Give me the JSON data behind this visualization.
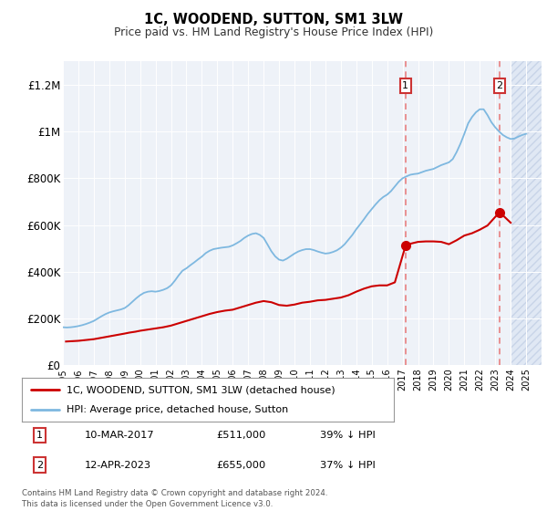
{
  "title": "1C, WOODEND, SUTTON, SM1 3LW",
  "subtitle": "Price paid vs. HM Land Registry's House Price Index (HPI)",
  "ylim": [
    0,
    1300000
  ],
  "yticks": [
    0,
    200000,
    400000,
    600000,
    800000,
    1000000,
    1200000
  ],
  "ytick_labels": [
    "£0",
    "£200K",
    "£400K",
    "£600K",
    "£800K",
    "£1M",
    "£1.2M"
  ],
  "hpi_color": "#7eb8e0",
  "price_color": "#cc0000",
  "dashed_color": "#e88080",
  "marker1_year": 2017.19,
  "marker1_price": 511000,
  "marker2_year": 2023.28,
  "marker2_price": 655000,
  "legend_label_red": "1C, WOODEND, SUTTON, SM1 3LW (detached house)",
  "legend_label_blue": "HPI: Average price, detached house, Sutton",
  "note1_num": "1",
  "note1_date": "10-MAR-2017",
  "note1_price": "£511,000",
  "note1_hpi": "39% ↓ HPI",
  "note2_num": "2",
  "note2_date": "12-APR-2023",
  "note2_price": "£655,000",
  "note2_hpi": "37% ↓ HPI",
  "footer": "Contains HM Land Registry data © Crown copyright and database right 2024.\nThis data is licensed under the Open Government Licence v3.0.",
  "bg_color": "#eef2f8",
  "hatch_bg_color": "#e0e8f4",
  "hpi_data_x": [
    1995.0,
    1995.25,
    1995.5,
    1995.75,
    1996.0,
    1996.25,
    1996.5,
    1996.75,
    1997.0,
    1997.25,
    1997.5,
    1997.75,
    1998.0,
    1998.25,
    1998.5,
    1998.75,
    1999.0,
    1999.25,
    1999.5,
    1999.75,
    2000.0,
    2000.25,
    2000.5,
    2000.75,
    2001.0,
    2001.25,
    2001.5,
    2001.75,
    2002.0,
    2002.25,
    2002.5,
    2002.75,
    2003.0,
    2003.25,
    2003.5,
    2003.75,
    2004.0,
    2004.25,
    2004.5,
    2004.75,
    2005.0,
    2005.25,
    2005.5,
    2005.75,
    2006.0,
    2006.25,
    2006.5,
    2006.75,
    2007.0,
    2007.25,
    2007.5,
    2007.75,
    2008.0,
    2008.25,
    2008.5,
    2008.75,
    2009.0,
    2009.25,
    2009.5,
    2009.75,
    2010.0,
    2010.25,
    2010.5,
    2010.75,
    2011.0,
    2011.25,
    2011.5,
    2011.75,
    2012.0,
    2012.25,
    2012.5,
    2012.75,
    2013.0,
    2013.25,
    2013.5,
    2013.75,
    2014.0,
    2014.25,
    2014.5,
    2014.75,
    2015.0,
    2015.25,
    2015.5,
    2015.75,
    2016.0,
    2016.25,
    2016.5,
    2016.75,
    2017.0,
    2017.25,
    2017.5,
    2017.75,
    2018.0,
    2018.25,
    2018.5,
    2018.75,
    2019.0,
    2019.25,
    2019.5,
    2019.75,
    2020.0,
    2020.25,
    2020.5,
    2020.75,
    2021.0,
    2021.25,
    2021.5,
    2021.75,
    2022.0,
    2022.25,
    2022.5,
    2022.75,
    2023.0,
    2023.25,
    2023.5,
    2023.75,
    2024.0,
    2024.25,
    2024.5,
    2024.75,
    2025.0
  ],
  "hpi_data_y": [
    163000,
    162000,
    163000,
    165000,
    168000,
    172000,
    177000,
    183000,
    190000,
    200000,
    210000,
    219000,
    226000,
    231000,
    235000,
    239000,
    245000,
    257000,
    272000,
    287000,
    300000,
    310000,
    315000,
    317000,
    315000,
    318000,
    323000,
    330000,
    342000,
    362000,
    385000,
    405000,
    415000,
    428000,
    440000,
    453000,
    465000,
    480000,
    490000,
    497000,
    500000,
    503000,
    505000,
    507000,
    513000,
    522000,
    532000,
    545000,
    555000,
    562000,
    565000,
    558000,
    545000,
    517000,
    488000,
    466000,
    452000,
    448000,
    456000,
    467000,
    478000,
    487000,
    493000,
    497000,
    497000,
    493000,
    487000,
    482000,
    478000,
    480000,
    485000,
    492000,
    503000,
    518000,
    538000,
    558000,
    582000,
    603000,
    625000,
    648000,
    668000,
    688000,
    706000,
    720000,
    730000,
    745000,
    765000,
    785000,
    800000,
    808000,
    815000,
    818000,
    820000,
    826000,
    832000,
    836000,
    840000,
    848000,
    856000,
    862000,
    868000,
    882000,
    912000,
    948000,
    990000,
    1035000,
    1062000,
    1082000,
    1095000,
    1095000,
    1070000,
    1040000,
    1018000,
    1000000,
    985000,
    975000,
    968000,
    970000,
    978000,
    985000,
    990000
  ],
  "price_data_x": [
    1995.2,
    1996.0,
    1997.0,
    1997.5,
    1998.0,
    1998.5,
    1999.0,
    1999.3,
    1999.7,
    2000.0,
    2000.5,
    2001.0,
    2001.5,
    2002.0,
    2002.5,
    2003.0,
    2003.5,
    2004.0,
    2004.5,
    2005.0,
    2005.5,
    2006.0,
    2006.5,
    2007.0,
    2007.5,
    2008.0,
    2008.5,
    2009.0,
    2009.5,
    2010.0,
    2010.5,
    2011.0,
    2011.5,
    2012.0,
    2012.5,
    2013.0,
    2013.5,
    2014.0,
    2014.5,
    2015.0,
    2015.5,
    2016.0,
    2016.5,
    2017.19,
    2017.5,
    2018.0,
    2018.5,
    2019.0,
    2019.5,
    2020.0,
    2020.5,
    2021.0,
    2021.5,
    2022.0,
    2022.5,
    2023.28,
    2024.0
  ],
  "price_data_y": [
    102000,
    105000,
    112000,
    118000,
    124000,
    130000,
    136000,
    140000,
    144000,
    148000,
    153000,
    158000,
    163000,
    170000,
    180000,
    190000,
    200000,
    210000,
    220000,
    228000,
    234000,
    238000,
    248000,
    258000,
    268000,
    275000,
    270000,
    258000,
    255000,
    260000,
    268000,
    272000,
    278000,
    280000,
    285000,
    290000,
    300000,
    315000,
    328000,
    338000,
    342000,
    342000,
    355000,
    511000,
    520000,
    528000,
    530000,
    530000,
    528000,
    518000,
    535000,
    555000,
    565000,
    580000,
    598000,
    655000,
    610000
  ]
}
